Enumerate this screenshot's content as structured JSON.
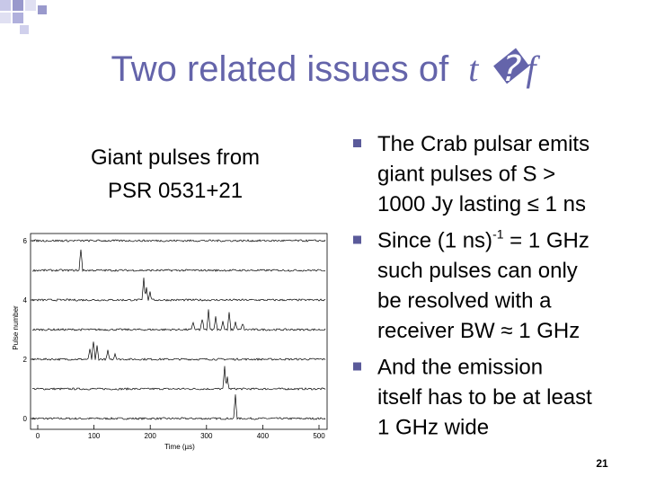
{
  "title": "Two related issues of",
  "title_math": "t",
  "title_symbol": "�f",
  "left_heading": [
    "Giant pulses from",
    "PSR 0531+21"
  ],
  "figure": {
    "xlabel": "Time (µs)",
    "ylabel": "Pulse number",
    "xlim": [
      0,
      500
    ],
    "xticks": [
      0,
      100,
      200,
      300,
      400,
      500
    ],
    "ylim": [
      0,
      6
    ],
    "yticks": [
      0,
      2,
      4,
      6
    ]
  },
  "bullets": [
    [
      [
        "The Crab pulsar emits"
      ],
      [
        "giant pulses of S >"
      ],
      [
        "1000 Jy lasting ≤ 1 ns"
      ]
    ],
    [
      [
        "Since (1 ns)",
        "-1",
        " = 1 GHz"
      ],
      [
        "such pulses can only"
      ],
      [
        "be resolved with a"
      ],
      [
        "receiver BW ≈ 1 GHz"
      ]
    ],
    [
      [
        "And the emission"
      ],
      [
        "itself has to be at least"
      ],
      [
        "1 GHz wide"
      ]
    ]
  ],
  "page_number": "21"
}
